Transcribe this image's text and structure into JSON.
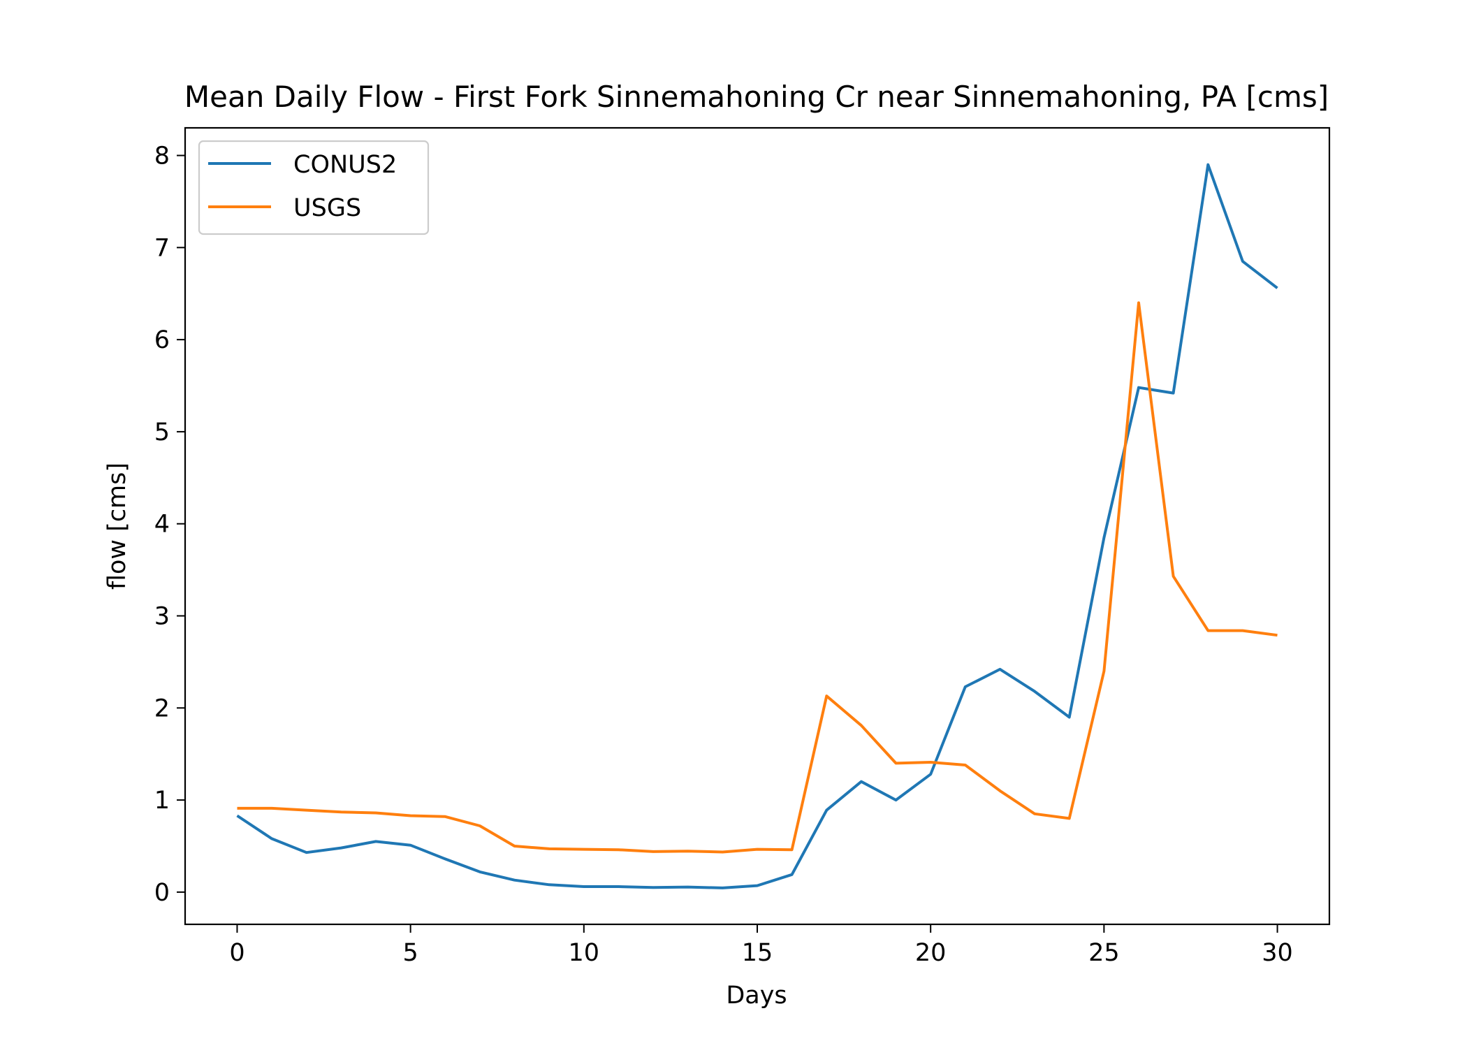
{
  "chart_data": {
    "type": "line",
    "title": "Mean Daily Flow - First Fork Sinnemahoning Cr near Sinnemahoning, PA [cms]",
    "xlabel": "Days",
    "ylabel": "flow [cms]",
    "xlim": [
      -1.5,
      31.5
    ],
    "ylim": [
      -0.35,
      8.3
    ],
    "xticks": [
      0,
      5,
      10,
      15,
      20,
      25,
      30
    ],
    "yticks": [
      0,
      1,
      2,
      3,
      4,
      5,
      6,
      7,
      8
    ],
    "grid": false,
    "legend_position": "upper-left",
    "x": [
      0,
      1,
      2,
      3,
      4,
      5,
      6,
      7,
      8,
      9,
      10,
      11,
      12,
      13,
      14,
      15,
      16,
      17,
      18,
      19,
      20,
      21,
      22,
      23,
      24,
      25,
      26,
      27,
      28,
      29,
      30
    ],
    "series": [
      {
        "name": "CONUS2",
        "color": "#1f77b4",
        "values": [
          0.83,
          0.58,
          0.43,
          0.48,
          0.55,
          0.51,
          0.36,
          0.22,
          0.13,
          0.08,
          0.06,
          0.06,
          0.05,
          0.055,
          0.045,
          0.07,
          0.19,
          0.89,
          1.2,
          1.0,
          1.28,
          2.23,
          2.42,
          2.18,
          1.9,
          3.85,
          5.48,
          5.42,
          7.9,
          6.85,
          6.56
        ]
      },
      {
        "name": "USGS",
        "color": "#ff7f0e",
        "values": [
          0.91,
          0.91,
          0.89,
          0.87,
          0.86,
          0.83,
          0.82,
          0.72,
          0.5,
          0.47,
          0.465,
          0.46,
          0.44,
          0.445,
          0.435,
          0.465,
          0.46,
          2.13,
          1.81,
          1.4,
          1.41,
          1.38,
          1.1,
          0.85,
          0.8,
          2.4,
          6.4,
          3.43,
          2.84,
          2.84,
          2.79
        ]
      }
    ]
  }
}
